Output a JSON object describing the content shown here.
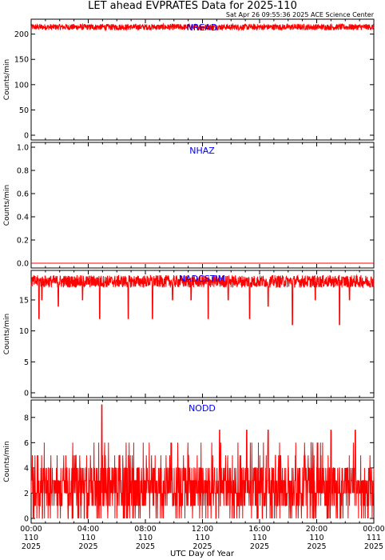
{
  "title": "LET ahead EVPRATES Data for 2025-110",
  "timestamp": "Sat Apr 26 09:55:36 2025 ACE Science Center",
  "xlabel": "UTC Day of Year",
  "colors": {
    "series": "#ff0000",
    "panel_label": "#0000ff",
    "axes": "#000000"
  },
  "x_ticks": [
    {
      "time": "00:00",
      "doy": "110",
      "year": "2025"
    },
    {
      "time": "04:00",
      "doy": "110",
      "year": "2025"
    },
    {
      "time": "08:00",
      "doy": "110",
      "year": "2025"
    },
    {
      "time": "12:00",
      "doy": "110",
      "year": "2025"
    },
    {
      "time": "16:00",
      "doy": "110",
      "year": "2025"
    },
    {
      "time": "20:00",
      "doy": "110",
      "year": "2025"
    },
    {
      "time": "00:00",
      "doy": "111",
      "year": "2025"
    }
  ],
  "chart_data": [
    {
      "type": "line",
      "series_name": "NREAD",
      "ylabel": "Counts/min",
      "ylim": [
        0,
        220
      ],
      "yticks": [
        "0",
        "50",
        "100",
        "150",
        "200"
      ],
      "x_range_hours": [
        0,
        24
      ],
      "typical_level": 214,
      "noise_range": [
        208,
        220
      ],
      "dips": []
    },
    {
      "type": "line",
      "series_name": "NHAZ",
      "ylabel": "Counts/min",
      "ylim": [
        0,
        1
      ],
      "yticks": [
        "0.0",
        "0.2",
        "0.4",
        "0.6",
        "0.8",
        "1.0"
      ],
      "x_range_hours": [
        0,
        24
      ],
      "typical_level": 0,
      "noise_range": [
        0,
        0
      ],
      "dips": []
    },
    {
      "type": "line",
      "series_name": "NADCSTIM",
      "ylabel": "Counts/min",
      "ylim": [
        0,
        19
      ],
      "yticks": [
        "0",
        "5",
        "10",
        "15"
      ],
      "x_range_hours": [
        0,
        24
      ],
      "typical_level": 18,
      "noise_range": [
        17,
        19
      ],
      "dips": [
        {
          "hour": 0.55,
          "value": 12
        },
        {
          "hour": 0.75,
          "value": 15
        },
        {
          "hour": 1.9,
          "value": 14
        },
        {
          "hour": 3.6,
          "value": 15
        },
        {
          "hour": 4.8,
          "value": 12
        },
        {
          "hour": 6.8,
          "value": 12
        },
        {
          "hour": 8.5,
          "value": 12
        },
        {
          "hour": 9.9,
          "value": 15
        },
        {
          "hour": 11.2,
          "value": 15
        },
        {
          "hour": 12.4,
          "value": 12
        },
        {
          "hour": 13.8,
          "value": 15
        },
        {
          "hour": 15.3,
          "value": 12
        },
        {
          "hour": 16.6,
          "value": 14
        },
        {
          "hour": 18.3,
          "value": 11
        },
        {
          "hour": 19.9,
          "value": 15
        },
        {
          "hour": 21.6,
          "value": 11
        },
        {
          "hour": 22.3,
          "value": 15
        }
      ]
    },
    {
      "type": "line",
      "series_name": "NODD",
      "ylabel": "Counts/min",
      "ylim": [
        0,
        9
      ],
      "yticks": [
        "0",
        "2",
        "4",
        "6",
        "8"
      ],
      "x_range_hours": [
        0,
        24
      ],
      "typical_level": 2,
      "noise_range": [
        0,
        6
      ],
      "peaks": [
        {
          "hour": 4.95,
          "value": 9
        },
        {
          "hour": 13.2,
          "value": 7
        },
        {
          "hour": 15.1,
          "value": 7
        },
        {
          "hour": 16.6,
          "value": 7
        },
        {
          "hour": 21.0,
          "value": 7
        },
        {
          "hour": 22.7,
          "value": 7
        }
      ]
    }
  ]
}
